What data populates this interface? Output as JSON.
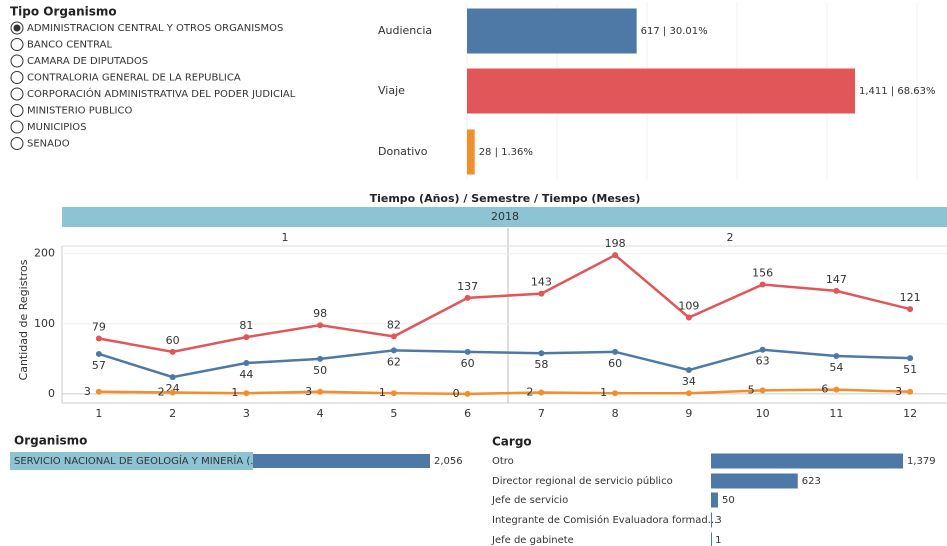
{
  "filter": {
    "title": "Tipo Organismo",
    "selected": 0,
    "options": [
      "ADMINISTRACION CENTRAL Y OTROS ORGANISMOS",
      "BANCO CENTRAL",
      "CAMARA DE DIPUTADOS",
      "CONTRALORIA GENERAL DE LA REPUBLICA",
      "CORPORACIÓN ADMINISTRATIVA DEL PODER JUDICIAL",
      "MINISTERIO PUBLICO",
      "MUNICIPIOS",
      "SENADO"
    ]
  },
  "chart_data": [
    {
      "type": "bar",
      "orientation": "horizontal",
      "categories": [
        "Audiencia",
        "Viaje",
        "Donativo"
      ],
      "values": [
        617,
        1411,
        28
      ],
      "value_labels": [
        "617 | 30.01%",
        "1,411 | 68.63%",
        "28 | 1.36%"
      ],
      "colors": [
        "#4e79a7",
        "#e15759",
        "#f28e2b"
      ]
    },
    {
      "type": "line",
      "title": "Tiempo (Años) / Semestre / Tiempo (Meses)",
      "year": "2018",
      "semesters": [
        "1",
        "2"
      ],
      "y_label": "Cantidad de Registros",
      "categories": [
        "1",
        "2",
        "3",
        "4",
        "5",
        "6",
        "7",
        "8",
        "9",
        "10",
        "11",
        "12"
      ],
      "ylim": [
        -13,
        211
      ],
      "yticks": [
        0,
        100,
        200
      ],
      "grid": true,
      "series": [
        {
          "color": "#e15759",
          "values": [
            79,
            60,
            81,
            98,
            82,
            137,
            143,
            198,
            109,
            156,
            147,
            121
          ]
        },
        {
          "color": "#4e79a7",
          "values": [
            57,
            24,
            44,
            50,
            62,
            60,
            58,
            60,
            34,
            63,
            54,
            51
          ]
        },
        {
          "color": "#f28e2b",
          "values": [
            3,
            2,
            1,
            3,
            1,
            0,
            2,
            1,
            1,
            5,
            6,
            3
          ],
          "value_labels": [
            "3",
            "2",
            "1",
            "3",
            "1",
            "0",
            "2",
            "1",
            null,
            "5",
            "6",
            "3"
          ]
        }
      ]
    },
    {
      "type": "bar",
      "orientation": "horizontal",
      "title": "Organismo",
      "categories": [
        "SERVICIO NACIONAL DE GEOLOGÍA Y MINERÍA (..."
      ],
      "values": [
        2056
      ],
      "value_labels": [
        "2,056"
      ],
      "color": "#4e79a7"
    },
    {
      "type": "bar",
      "orientation": "horizontal",
      "title": "Cargo",
      "categories": [
        "Otro",
        "Director regional de servicio público",
        "Jefe de servicio",
        "Integrante de Comisión Evaluadora formad...",
        "Jefe de gabinete"
      ],
      "values": [
        1379,
        623,
        50,
        3,
        1
      ],
      "value_labels": [
        "1,379",
        "623",
        "50",
        "3",
        "1"
      ],
      "color": "#4e79a7"
    }
  ]
}
